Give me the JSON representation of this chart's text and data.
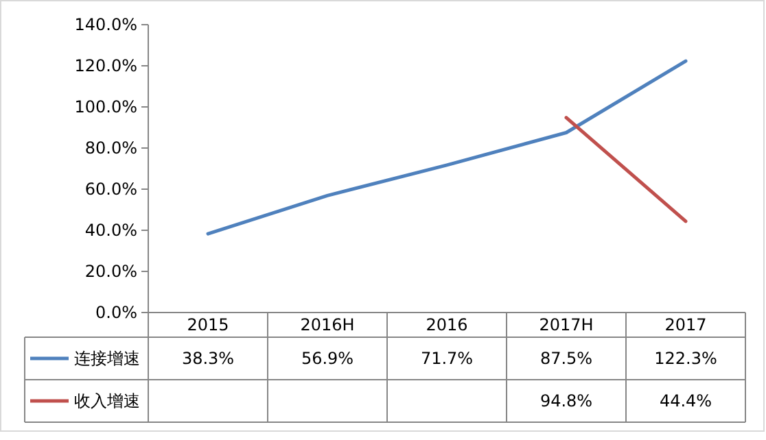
{
  "chart_data": {
    "type": "line",
    "categories": [
      "2015",
      "2016H",
      "2016",
      "2017H",
      "2017"
    ],
    "series": [
      {
        "name": "连接增速",
        "color": "#4f81bd",
        "values": [
          38.3,
          56.9,
          71.7,
          87.5,
          122.3
        ]
      },
      {
        "name": "收入增速",
        "color": "#c0504d",
        "values": [
          null,
          null,
          null,
          94.8,
          44.4
        ]
      }
    ],
    "ylim": [
      0,
      140
    ],
    "yticks": [
      {
        "value": 0,
        "label": "0.0%"
      },
      {
        "value": 20,
        "label": "20.0%"
      },
      {
        "value": 40,
        "label": "40.0%"
      },
      {
        "value": 60,
        "label": "60.0%"
      },
      {
        "value": 80,
        "label": "80.0%"
      },
      {
        "value": 100,
        "label": "100.0%"
      },
      {
        "value": 120,
        "label": "120.0%"
      },
      {
        "value": 140,
        "label": "140.0%"
      }
    ],
    "value_labels": [
      [
        "38.3%",
        "56.9%",
        "71.7%",
        "87.5%",
        "122.3%"
      ],
      [
        null,
        null,
        null,
        "94.8%",
        "44.4%"
      ]
    ],
    "grid": false,
    "legend": "bottom",
    "marker": "none",
    "line_style": "solid"
  }
}
